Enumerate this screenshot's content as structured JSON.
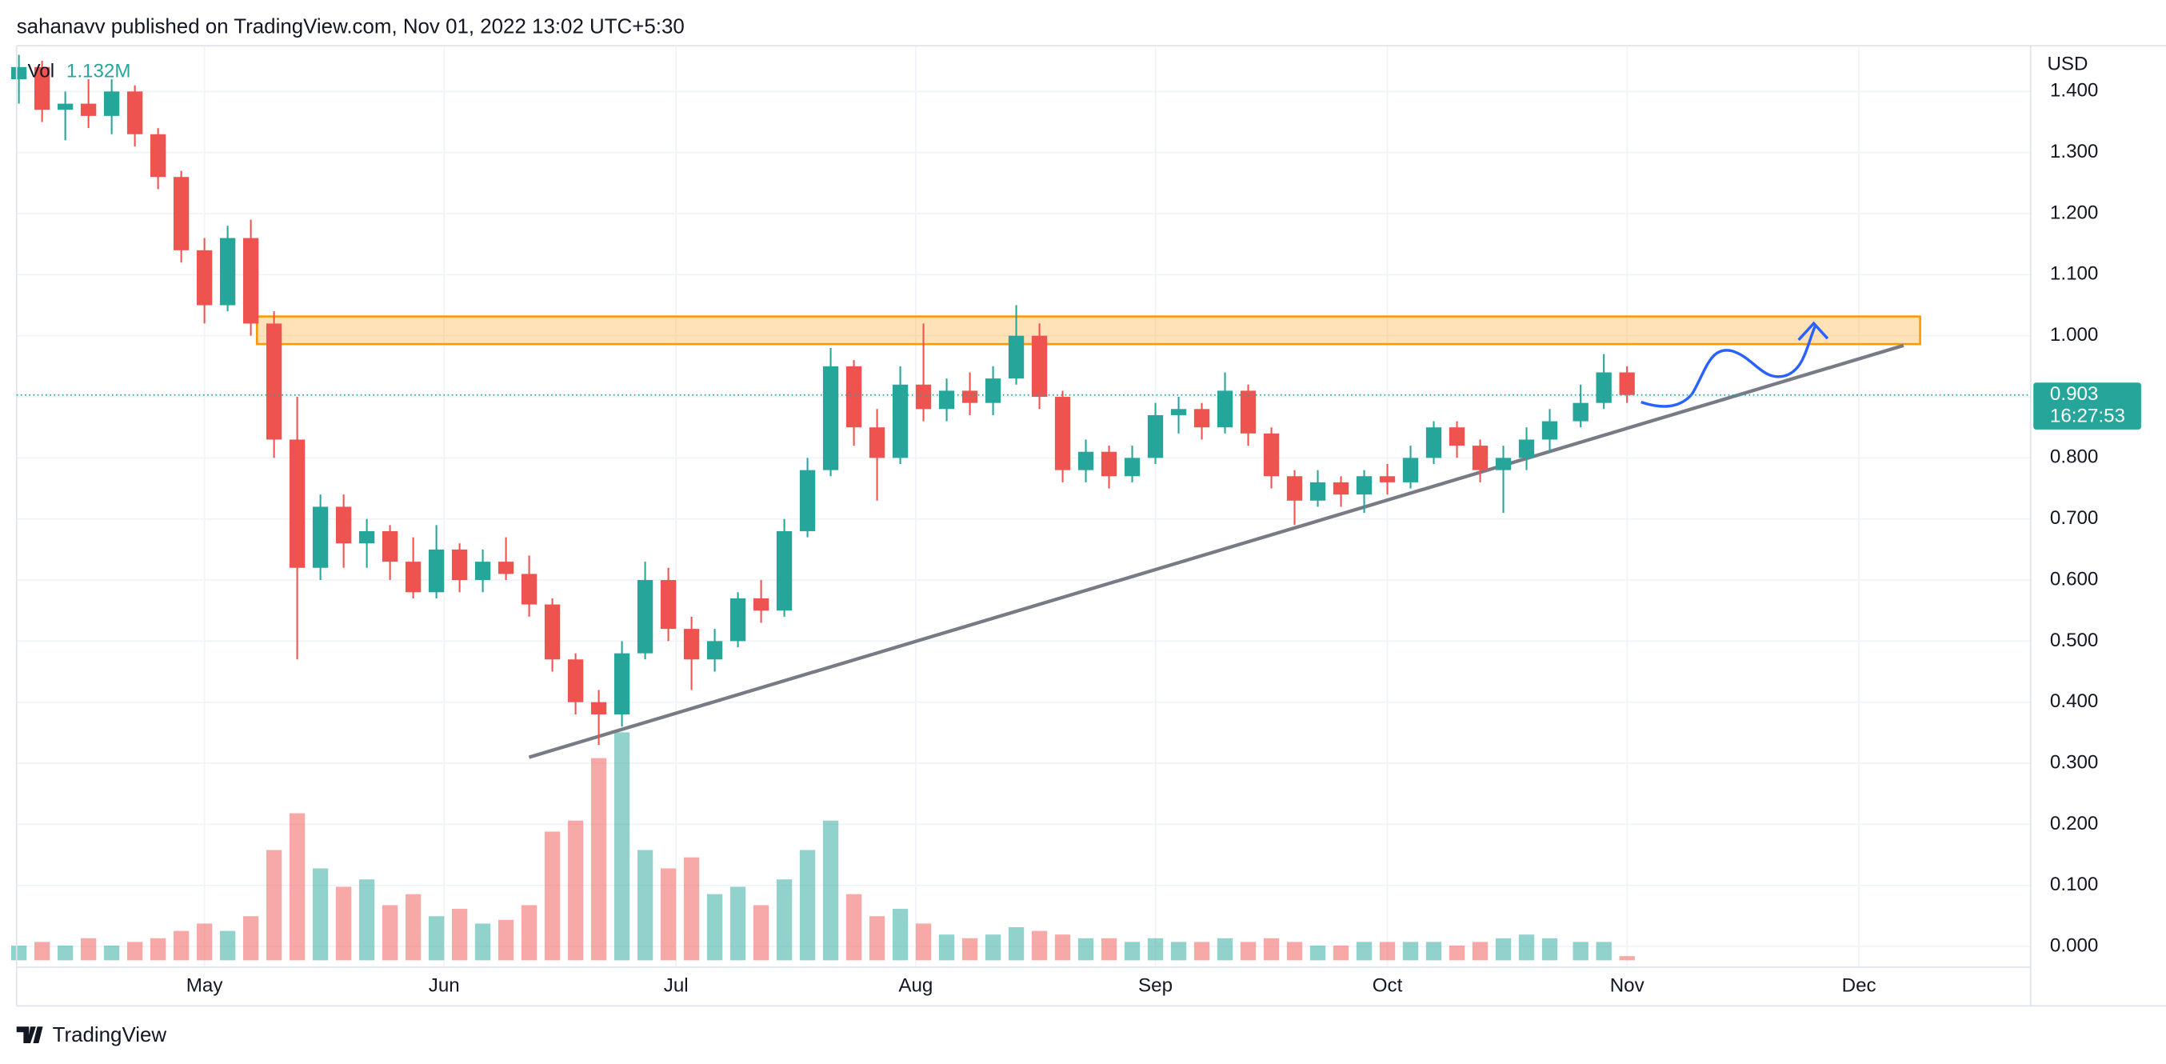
{
  "header": "sahanavv published on TradingView.com, Nov 01, 2022 13:02 UTC+5:30",
  "brand": "TradingView",
  "chart_data": {
    "type": "candlestick",
    "currency": "USD",
    "volume_name": "Vol",
    "volume_last_label": "1.132M",
    "last_price": 0.903,
    "countdown": "16:27:53",
    "up_color": "#26a69a",
    "down_color": "#ef5350",
    "grid": true,
    "xlim": [
      -0.3,
      260.2
    ],
    "xticks": [
      {
        "value": 24,
        "label": "May"
      },
      {
        "value": 55,
        "label": "Jun"
      },
      {
        "value": 85,
        "label": "Jul"
      },
      {
        "value": 116,
        "label": "Aug"
      },
      {
        "value": 147,
        "label": "Sep"
      },
      {
        "value": 177,
        "label": "Oct"
      },
      {
        "value": 208,
        "label": "Nov"
      },
      {
        "value": 238,
        "label": "Dec"
      }
    ],
    "ylim": [
      -0.034,
      1.475
    ],
    "yticks": [
      {
        "value": 0,
        "label": "0.000"
      },
      {
        "value": 0.1,
        "label": "0.100"
      },
      {
        "value": 0.2,
        "label": "0.200"
      },
      {
        "value": 0.3,
        "label": "0.300"
      },
      {
        "value": 0.4,
        "label": "0.400"
      },
      {
        "value": 0.5,
        "label": "0.500"
      },
      {
        "value": 0.6,
        "label": "0.600"
      },
      {
        "value": 0.7,
        "label": "0.700"
      },
      {
        "value": 0.8,
        "label": "0.800"
      },
      {
        "value": 0.9,
        "label": "0.900"
      },
      {
        "value": 1,
        "label": "1.000"
      },
      {
        "value": 1.1,
        "label": "1.100"
      },
      {
        "value": 1.2,
        "label": "1.200"
      },
      {
        "value": 1.3,
        "label": "1.300"
      },
      {
        "value": 1.4,
        "label": "1.400"
      }
    ],
    "x": [
      0,
      3,
      6,
      9,
      12,
      15,
      18,
      21,
      24,
      27,
      30,
      33,
      36,
      39,
      42,
      45,
      48,
      51,
      54,
      57,
      60,
      63,
      66,
      69,
      72,
      75,
      78,
      81,
      84,
      87,
      90,
      93,
      96,
      99,
      102,
      105,
      108,
      111,
      114,
      117,
      120,
      123,
      126,
      129,
      132,
      135,
      138,
      141,
      144,
      147,
      150,
      153,
      156,
      159,
      162,
      165,
      168,
      171,
      174,
      177,
      180,
      183,
      186,
      189,
      192,
      195,
      198,
      202,
      205,
      208
    ],
    "open": [
      1.42,
      1.44,
      1.37,
      1.38,
      1.36,
      1.4,
      1.33,
      1.26,
      1.14,
      1.05,
      1.16,
      1.02,
      0.83,
      0.62,
      0.72,
      0.66,
      0.68,
      0.63,
      0.58,
      0.65,
      0.6,
      0.63,
      0.61,
      0.56,
      0.47,
      0.4,
      0.38,
      0.48,
      0.6,
      0.52,
      0.47,
      0.5,
      0.57,
      0.55,
      0.68,
      0.78,
      0.95,
      0.85,
      0.8,
      0.92,
      0.88,
      0.91,
      0.89,
      0.93,
      1.0,
      0.9,
      0.78,
      0.81,
      0.77,
      0.8,
      0.87,
      0.88,
      0.85,
      0.91,
      0.84,
      0.77,
      0.73,
      0.76,
      0.74,
      0.77,
      0.76,
      0.8,
      0.85,
      0.82,
      0.78,
      0.8,
      0.83,
      0.86,
      0.89,
      0.94
    ],
    "high": [
      1.46,
      1.45,
      1.4,
      1.42,
      1.42,
      1.41,
      1.34,
      1.27,
      1.16,
      1.18,
      1.19,
      1.04,
      0.9,
      0.74,
      0.74,
      0.7,
      0.69,
      0.67,
      0.69,
      0.66,
      0.65,
      0.67,
      0.64,
      0.57,
      0.48,
      0.42,
      0.5,
      0.63,
      0.62,
      0.54,
      0.52,
      0.58,
      0.6,
      0.7,
      0.8,
      0.98,
      0.96,
      0.88,
      0.95,
      1.02,
      0.93,
      0.94,
      0.95,
      1.05,
      1.02,
      0.91,
      0.83,
      0.82,
      0.82,
      0.89,
      0.9,
      0.89,
      0.94,
      0.92,
      0.85,
      0.78,
      0.78,
      0.77,
      0.78,
      0.79,
      0.82,
      0.86,
      0.86,
      0.83,
      0.82,
      0.85,
      0.88,
      0.92,
      0.97,
      0.95
    ],
    "low": [
      1.38,
      1.35,
      1.32,
      1.34,
      1.33,
      1.31,
      1.24,
      1.12,
      1.02,
      1.04,
      1.0,
      0.8,
      0.47,
      0.6,
      0.62,
      0.62,
      0.6,
      0.57,
      0.57,
      0.58,
      0.58,
      0.6,
      0.54,
      0.45,
      0.38,
      0.33,
      0.36,
      0.47,
      0.5,
      0.42,
      0.45,
      0.49,
      0.53,
      0.54,
      0.67,
      0.77,
      0.82,
      0.73,
      0.79,
      0.86,
      0.86,
      0.87,
      0.87,
      0.92,
      0.88,
      0.76,
      0.76,
      0.75,
      0.76,
      0.79,
      0.84,
      0.83,
      0.84,
      0.82,
      0.75,
      0.69,
      0.72,
      0.72,
      0.71,
      0.74,
      0.75,
      0.79,
      0.8,
      0.76,
      0.71,
      0.78,
      0.81,
      0.85,
      0.88,
      0.89
    ],
    "close": [
      1.44,
      1.37,
      1.38,
      1.36,
      1.4,
      1.33,
      1.26,
      1.14,
      1.05,
      1.16,
      1.02,
      0.83,
      0.62,
      0.72,
      0.66,
      0.68,
      0.63,
      0.58,
      0.65,
      0.6,
      0.63,
      0.61,
      0.56,
      0.47,
      0.4,
      0.38,
      0.48,
      0.6,
      0.52,
      0.47,
      0.5,
      0.57,
      0.55,
      0.68,
      0.78,
      0.95,
      0.85,
      0.8,
      0.92,
      0.88,
      0.91,
      0.89,
      0.93,
      1.0,
      0.9,
      0.78,
      0.81,
      0.77,
      0.8,
      0.87,
      0.88,
      0.85,
      0.91,
      0.84,
      0.77,
      0.73,
      0.76,
      0.74,
      0.77,
      0.76,
      0.8,
      0.85,
      0.82,
      0.78,
      0.8,
      0.83,
      0.86,
      0.89,
      0.94,
      0.903
    ],
    "volume": [
      4,
      5,
      4,
      6,
      4,
      5,
      6,
      8,
      10,
      8,
      12,
      30,
      40,
      25,
      20,
      22,
      15,
      18,
      12,
      14,
      10,
      11,
      15,
      35,
      38,
      55,
      62,
      30,
      25,
      28,
      18,
      20,
      15,
      22,
      30,
      38,
      18,
      12,
      14,
      10,
      7,
      6,
      7,
      9,
      8,
      7,
      6,
      6,
      5,
      6,
      5,
      5,
      6,
      5,
      6,
      5,
      4,
      4,
      5,
      5,
      5,
      5,
      4,
      5,
      6,
      7,
      6,
      5,
      5,
      1.132
    ]
  }
}
